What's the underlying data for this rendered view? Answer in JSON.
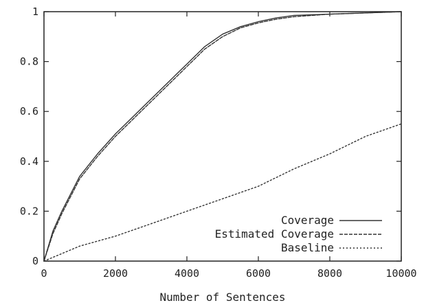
{
  "chart_data": {
    "type": "line",
    "title": "",
    "xlabel": "Number of Sentences",
    "ylabel": "",
    "xlim": [
      0,
      10000
    ],
    "ylim": [
      0,
      1
    ],
    "x_ticks": [
      "0",
      "2000",
      "4000",
      "6000",
      "8000",
      "10000"
    ],
    "y_ticks": [
      "0",
      "0.2",
      "0.4",
      "0.6",
      "0.8",
      "1"
    ],
    "grid": false,
    "legend_position": "bottom-right",
    "series": [
      {
        "name": "Coverage",
        "style": "solid",
        "x": [
          0,
          250,
          500,
          1000,
          1500,
          2000,
          2500,
          3000,
          3500,
          4000,
          4500,
          5000,
          5500,
          6000,
          6500,
          7000,
          8000,
          9000,
          10000
        ],
        "y": [
          0,
          0.12,
          0.2,
          0.34,
          0.43,
          0.51,
          0.58,
          0.65,
          0.72,
          0.79,
          0.86,
          0.91,
          0.94,
          0.96,
          0.975,
          0.985,
          0.99,
          0.995,
          1.0
        ]
      },
      {
        "name": "Estimated Coverage",
        "style": "dashed",
        "x": [
          0,
          250,
          500,
          1000,
          1500,
          2000,
          2500,
          3000,
          3500,
          4000,
          4500,
          5000,
          5500,
          6000,
          6500,
          7000,
          8000,
          9000,
          10000
        ],
        "y": [
          0,
          0.11,
          0.19,
          0.33,
          0.42,
          0.5,
          0.57,
          0.64,
          0.71,
          0.78,
          0.85,
          0.9,
          0.935,
          0.955,
          0.97,
          0.98,
          0.99,
          0.995,
          1.0
        ]
      },
      {
        "name": "Baseline",
        "style": "dotted",
        "x": [
          0,
          1000,
          2000,
          3000,
          4000,
          5000,
          6000,
          7000,
          8000,
          9000,
          10000
        ],
        "y": [
          0,
          0.06,
          0.1,
          0.15,
          0.2,
          0.25,
          0.3,
          0.37,
          0.43,
          0.5,
          0.55
        ]
      }
    ]
  },
  "colors": {
    "series_color": "#333333",
    "frame_color": "#222222"
  }
}
